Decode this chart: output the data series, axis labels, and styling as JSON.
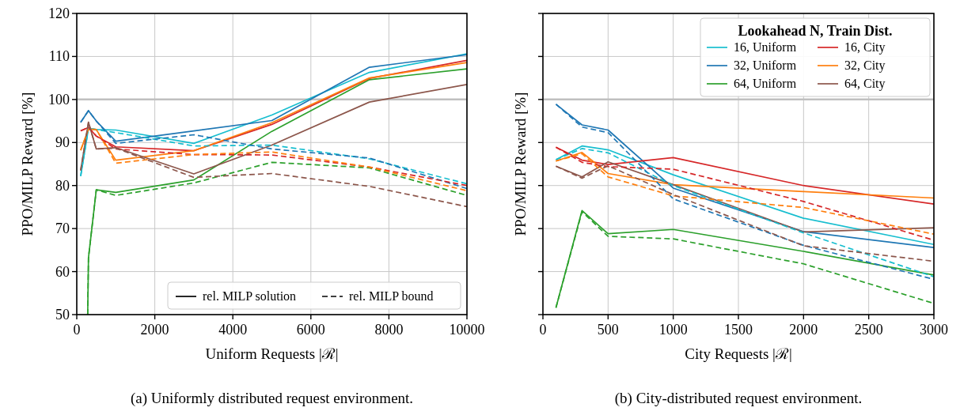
{
  "chart_data": [
    {
      "type": "line",
      "subtitle": "(a) Uniformly distributed request environment.",
      "xlabel": "Uniform Requests |ℛ|",
      "ylabel": "PPO/MILP Reward [%]",
      "x": [
        100,
        300,
        500,
        1000,
        3000,
        5000,
        7500,
        10000
      ],
      "xlim": [
        0,
        10000
      ],
      "xticks": [
        0,
        2000,
        4000,
        6000,
        8000,
        10000
      ],
      "ylim": [
        50,
        120
      ],
      "yticks": [
        50,
        60,
        70,
        80,
        90,
        100,
        110,
        120
      ],
      "grid": true,
      "ref_lines": [
        {
          "axis": "y",
          "value": 100,
          "color": "#c0c0c0"
        }
      ],
      "legend": "bottom right",
      "annotations": [
        "rel. MILP solution",
        "rel. MILP bound"
      ],
      "series": [
        {
          "color": "#17becf",
          "line_style": "solid",
          "values": [
            82.2,
            93.3,
            93,
            92.9,
            89.8,
            96.4,
            106.3,
            110.6
          ]
        },
        {
          "color": "#1f77b4",
          "line_style": "solid",
          "values": [
            94.7,
            97.4,
            95,
            90.3,
            92.7,
            95.1,
            107.5,
            110.4
          ]
        },
        {
          "color": "#2ca02c",
          "line_style": "solid",
          "x": [
            280,
            300,
            500,
            1000,
            3000,
            5000,
            7500,
            10000
          ],
          "values": [
            50,
            63.2,
            79,
            78.4,
            81.3,
            92.6,
            104.6,
            107.1
          ]
        },
        {
          "color": "#d62728",
          "line_style": "solid",
          "values": [
            92.7,
            93.5,
            91.5,
            89,
            88.1,
            94.2,
            104.9,
            109.1
          ]
        },
        {
          "color": "#ff7f0e",
          "line_style": "solid",
          "values": [
            88.2,
            93.1,
            93,
            85.9,
            88.1,
            94.6,
            105,
            108.6
          ]
        },
        {
          "color": "#8c564b",
          "line_style": "solid",
          "values": [
            83.5,
            94.7,
            88.5,
            88.8,
            82.7,
            89.4,
            99.4,
            103.5
          ]
        },
        {
          "color": "#17becf",
          "line_style": "dashed",
          "values": [
            82.2,
            93.3,
            93,
            92.3,
            89.2,
            89.4,
            86.2,
            80.4
          ]
        },
        {
          "color": "#1f77b4",
          "line_style": "dashed",
          "values": [
            94.7,
            97.4,
            95,
            89.8,
            91.8,
            88.5,
            86.4,
            79.3
          ]
        },
        {
          "color": "#2ca02c",
          "line_style": "dashed",
          "x": [
            280,
            300,
            500,
            1000,
            3000,
            5000,
            7500,
            10000
          ],
          "values": [
            50,
            63.2,
            79,
            77.7,
            80.6,
            85.4,
            84.1,
            77.7
          ]
        },
        {
          "color": "#d62728",
          "line_style": "dashed",
          "values": [
            92.7,
            93.5,
            91.5,
            88.5,
            87.2,
            87.1,
            84.3,
            80
          ]
        },
        {
          "color": "#ff7f0e",
          "line_style": "dashed",
          "values": [
            88.2,
            93.1,
            93,
            85.2,
            87.2,
            87.8,
            84.3,
            78.8
          ]
        },
        {
          "color": "#8c564b",
          "line_style": "dashed",
          "values": [
            83.5,
            94.7,
            88.5,
            88.7,
            81.9,
            82.8,
            79.8,
            75.1
          ]
        }
      ]
    },
    {
      "type": "line",
      "subtitle": "(b) City-distributed request environment.",
      "xlabel": "City Requests |ℛ|",
      "ylabel": "PPO/MILP Reward [%]",
      "legend_title": "Lookahead N, Train Dist.",
      "x": [
        100,
        300,
        500,
        1000,
        2000,
        3000
      ],
      "xlim": [
        0,
        3000
      ],
      "xticks": [
        0,
        500,
        1000,
        1500,
        2000,
        2500,
        3000
      ],
      "ylim": [
        50,
        120
      ],
      "yticks": [
        50,
        60,
        70,
        80,
        90,
        100,
        110,
        120
      ],
      "tick_labels": "x",
      "grid": true,
      "ref_lines": [
        {
          "axis": "y",
          "value": 100,
          "color": "#c0c0c0"
        }
      ],
      "legend": "top right",
      "series": [
        {
          "name": "16, Uniform",
          "color": "#17becf",
          "line_style": "solid",
          "values": [
            86,
            89.2,
            88.3,
            82.5,
            72.4,
            66.3
          ]
        },
        {
          "name": "32, Uniform",
          "color": "#1f77b4",
          "line_style": "solid",
          "values": [
            98.9,
            94.1,
            92.9,
            79.4,
            69.3,
            65.6
          ]
        },
        {
          "name": "64, Uniform",
          "color": "#2ca02c",
          "line_style": "solid",
          "values": [
            51.6,
            74.2,
            68.8,
            69.8,
            64.7,
            59.2
          ]
        },
        {
          "name": "16, City",
          "color": "#d62728",
          "line_style": "solid",
          "values": [
            88.9,
            85.9,
            84.9,
            86.5,
            80,
            75.7
          ]
        },
        {
          "name": "32, City",
          "color": "#ff7f0e",
          "line_style": "solid",
          "values": [
            85.7,
            87.7,
            82.8,
            80.2,
            78.6,
            77.1
          ]
        },
        {
          "name": "64, City",
          "color": "#8c564b",
          "line_style": "solid",
          "values": [
            84.5,
            82,
            85.5,
            80.2,
            69.2,
            70.2
          ]
        },
        {
          "color": "#17becf",
          "line_style": "dashed",
          "values": [
            86,
            88.6,
            87.6,
            80,
            69,
            58.8
          ]
        },
        {
          "color": "#1f77b4",
          "line_style": "dashed",
          "values": [
            98.9,
            93.6,
            92.3,
            76.9,
            66.1,
            58.2
          ]
        },
        {
          "color": "#2ca02c",
          "line_style": "dashed",
          "values": [
            51.6,
            73.9,
            68.2,
            67.6,
            61.8,
            52.6
          ]
        },
        {
          "color": "#d62728",
          "line_style": "dashed",
          "values": [
            88.9,
            85.4,
            84.4,
            83.8,
            76.3,
            67.3
          ]
        },
        {
          "color": "#ff7f0e",
          "line_style": "dashed",
          "values": [
            85.7,
            87.4,
            82,
            77.6,
            74.9,
            68.7
          ]
        },
        {
          "color": "#8c564b",
          "line_style": "dashed",
          "values": [
            84.5,
            81.7,
            84.6,
            77.9,
            66,
            62.4
          ]
        }
      ]
    }
  ]
}
